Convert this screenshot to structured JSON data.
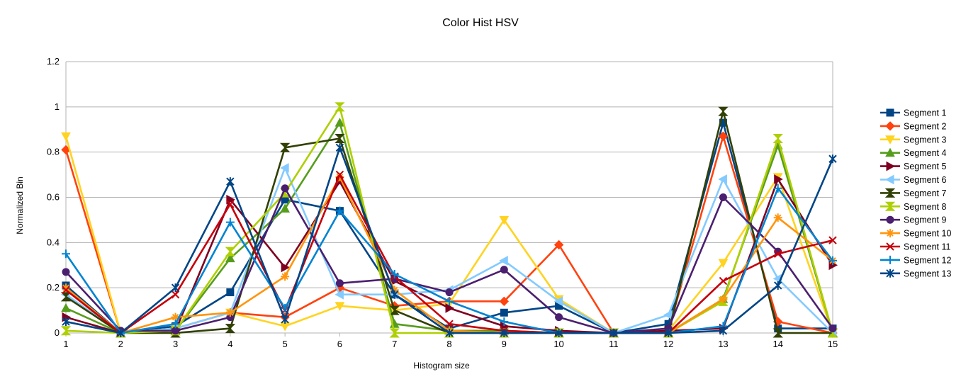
{
  "chart_data": {
    "type": "line",
    "title": "Color Hist HSV",
    "xlabel": "Histogram size",
    "ylabel": "Normalized Bin",
    "categories": [
      "1",
      "2",
      "3",
      "4",
      "5",
      "6",
      "7",
      "8",
      "9",
      "10",
      "11",
      "12",
      "13",
      "14",
      "15"
    ],
    "ylim": [
      0,
      1.2
    ],
    "yticks": [
      "0",
      "0.2",
      "0.4",
      "0.6",
      "0.8",
      "1",
      "1.2"
    ],
    "grid": "horizontal",
    "legend_position": "right",
    "series": [
      {
        "name": "Segment 1",
        "color": "#004586",
        "marker": "square",
        "values": [
          0.21,
          0.0,
          0.03,
          0.18,
          0.59,
          0.54,
          0.17,
          0.02,
          0.09,
          0.12,
          0.0,
          0.04,
          0.93,
          0.02,
          0.02
        ]
      },
      {
        "name": "Segment 2",
        "color": "#ff420e",
        "marker": "diamond",
        "values": [
          0.81,
          0.0,
          0.02,
          0.09,
          0.07,
          0.2,
          0.12,
          0.14,
          0.14,
          0.39,
          0.0,
          0.01,
          0.87,
          0.05,
          0.0
        ]
      },
      {
        "name": "Segment 3",
        "color": "#ffd320",
        "marker": "triangle-down",
        "values": [
          0.87,
          0.0,
          0.02,
          0.09,
          0.03,
          0.12,
          0.1,
          0.13,
          0.5,
          0.15,
          0.0,
          0.01,
          0.31,
          0.69,
          0.0
        ]
      },
      {
        "name": "Segment 4",
        "color": "#579d1c",
        "marker": "triangle-up",
        "values": [
          0.11,
          0.0,
          0.01,
          0.33,
          0.55,
          0.93,
          0.04,
          0.01,
          0.01,
          0.0,
          0.0,
          0.0,
          0.15,
          0.83,
          0.0
        ]
      },
      {
        "name": "Segment 5",
        "color": "#7e0021",
        "marker": "triangle-right",
        "values": [
          0.07,
          0.0,
          0.01,
          0.59,
          0.29,
          0.67,
          0.23,
          0.11,
          0.03,
          0.01,
          0.0,
          0.01,
          0.02,
          0.68,
          0.3
        ]
      },
      {
        "name": "Segment 6",
        "color": "#83caff",
        "marker": "triangle-left",
        "values": [
          0.17,
          0.0,
          0.02,
          0.09,
          0.73,
          0.17,
          0.17,
          0.19,
          0.32,
          0.14,
          0.0,
          0.08,
          0.68,
          0.24,
          0.0
        ]
      },
      {
        "name": "Segment 7",
        "color": "#314004",
        "marker": "hourglass",
        "values": [
          0.16,
          0.0,
          0.0,
          0.02,
          0.82,
          0.86,
          0.1,
          0.0,
          0.0,
          0.0,
          0.0,
          0.0,
          0.98,
          0.0,
          0.0
        ]
      },
      {
        "name": "Segment 8",
        "color": "#aecf00",
        "marker": "hourglass-v",
        "values": [
          0.01,
          0.0,
          0.01,
          0.36,
          0.62,
          1.0,
          0.0,
          0.0,
          0.0,
          0.0,
          0.0,
          0.0,
          0.14,
          0.86,
          0.0
        ]
      },
      {
        "name": "Segment 9",
        "color": "#4b1f6f",
        "marker": "circle",
        "values": [
          0.27,
          0.01,
          0.01,
          0.07,
          0.64,
          0.22,
          0.24,
          0.18,
          0.28,
          0.07,
          0.0,
          0.02,
          0.6,
          0.36,
          0.02
        ]
      },
      {
        "name": "Segment 10",
        "color": "#ff950e",
        "marker": "star",
        "values": [
          0.2,
          0.0,
          0.07,
          0.09,
          0.25,
          0.69,
          0.19,
          0.01,
          0.0,
          0.0,
          0.0,
          0.0,
          0.15,
          0.51,
          0.32
        ]
      },
      {
        "name": "Segment 11",
        "color": "#c5000b",
        "marker": "x",
        "values": [
          0.19,
          0.0,
          0.17,
          0.57,
          0.1,
          0.7,
          0.25,
          0.04,
          0.01,
          0.0,
          0.0,
          0.0,
          0.23,
          0.35,
          0.41
        ]
      },
      {
        "name": "Segment 12",
        "color": "#0084d1",
        "marker": "plus",
        "values": [
          0.35,
          0.0,
          0.04,
          0.49,
          0.11,
          0.54,
          0.26,
          0.14,
          0.05,
          0.0,
          0.0,
          0.0,
          0.03,
          0.64,
          0.32
        ]
      },
      {
        "name": "Segment 13",
        "color": "#004586",
        "marker": "asterisk",
        "values": [
          0.05,
          0.0,
          0.2,
          0.67,
          0.06,
          0.82,
          0.17,
          0.0,
          0.0,
          0.0,
          0.0,
          0.0,
          0.01,
          0.21,
          0.77
        ]
      }
    ]
  }
}
